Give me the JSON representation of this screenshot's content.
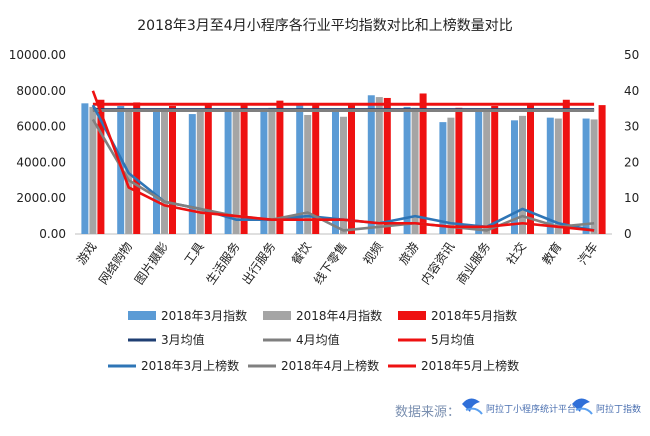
{
  "chart_data": {
    "type": "bar",
    "title": "2018年3月至4月小程序各行业平均指数对比和上榜数量对比",
    "categories": [
      "游戏",
      "网络购物",
      "图片摄影",
      "工具",
      "生活服务",
      "出行服务",
      "餐饮",
      "线下零售",
      "视频",
      "旅游",
      "内容资讯",
      "商业服务",
      "社交",
      "教育",
      "汽车"
    ],
    "left_axis": {
      "ylim": [
        0,
        10000
      ],
      "ticks": [
        "0.00",
        "2000.00",
        "4000.00",
        "6000.00",
        "8000.00",
        "10000.00"
      ]
    },
    "right_axis": {
      "ylim": [
        0,
        50
      ],
      "ticks": [
        "0",
        "10",
        "20",
        "30",
        "40",
        "50"
      ]
    },
    "series": [
      {
        "name": "2018年3月指数",
        "kind": "bar",
        "axis": "left",
        "color": "#5b9bd5",
        "values": [
          7300,
          7150,
          7000,
          6700,
          6950,
          6900,
          7200,
          6900,
          7750,
          7100,
          6250,
          6950,
          6350,
          6500,
          6450
        ]
      },
      {
        "name": "2018年4月指数",
        "kind": "bar",
        "axis": "left",
        "color": "#a5a5a5",
        "values": [
          7100,
          7000,
          6850,
          6900,
          6950,
          7050,
          6650,
          6550,
          7650,
          7050,
          6500,
          6850,
          6600,
          6450,
          6400
        ]
      },
      {
        "name": "2018年5月指数",
        "kind": "bar",
        "axis": "left",
        "color": "#ee1111",
        "values": [
          7500,
          7350,
          7150,
          7200,
          7200,
          7450,
          7200,
          7250,
          7600,
          7850,
          7050,
          7150,
          7300,
          7500,
          7200
        ]
      },
      {
        "name": "3月均值",
        "kind": "line",
        "axis": "left",
        "color": "#1f3f73",
        "values": [
          6950,
          6950,
          6950,
          6950,
          6950,
          6950,
          6950,
          6950,
          6950,
          6950,
          6950,
          6950,
          6950,
          6950,
          6950
        ]
      },
      {
        "name": "4月均值",
        "kind": "line",
        "axis": "left",
        "color": "#7f7f7f",
        "values": [
          6900,
          6900,
          6900,
          6900,
          6900,
          6900,
          6900,
          6900,
          6900,
          6900,
          6900,
          6900,
          6900,
          6900,
          6900
        ]
      },
      {
        "name": "5月均值",
        "kind": "line",
        "axis": "left",
        "color": "#ee1111",
        "values": [
          7250,
          7250,
          7250,
          7250,
          7250,
          7250,
          7250,
          7250,
          7250,
          7250,
          7250,
          7250,
          7250,
          7250,
          7250
        ]
      },
      {
        "name": "2018年3月上榜数",
        "kind": "line",
        "axis": "right",
        "color": "#2e75b6",
        "values": [
          36,
          17,
          9,
          7,
          4,
          4,
          5,
          4,
          3,
          5,
          3,
          2,
          7,
          3,
          1
        ]
      },
      {
        "name": "2018年4月上榜数",
        "kind": "line",
        "axis": "right",
        "color": "#808080",
        "values": [
          32,
          15,
          9,
          7,
          5,
          4,
          6,
          1,
          2,
          3,
          2,
          1,
          5,
          2,
          3
        ]
      },
      {
        "name": "2018年5月上榜数",
        "kind": "line",
        "axis": "right",
        "color": "#ee1111",
        "values": [
          40,
          13,
          8,
          6,
          5,
          4,
          4,
          4,
          3,
          3,
          2,
          2,
          3,
          2,
          1
        ]
      }
    ],
    "legend_position": "bottom",
    "grid": false
  },
  "footer": {
    "source_label": "数据来源：",
    "logo1": "阿拉丁小程序统计平台",
    "logo2": "阿拉丁指数"
  }
}
